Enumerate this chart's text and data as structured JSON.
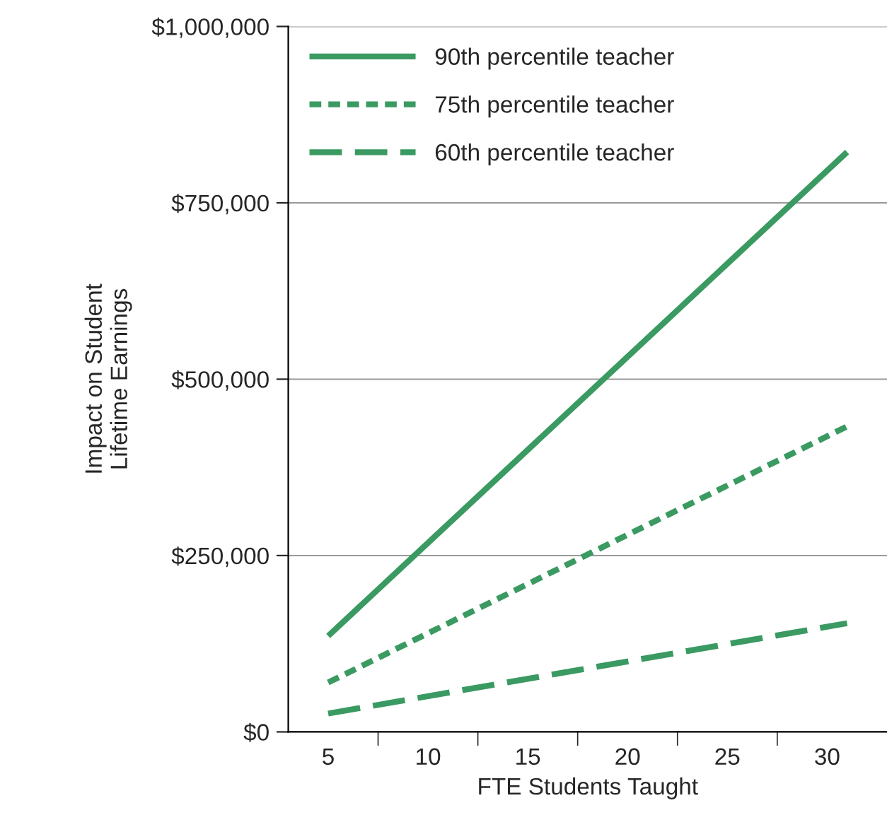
{
  "chart_data": {
    "type": "line",
    "xlabel": "FTE Students Taught",
    "ylabel": "Impact on Student\nLifetime Earnings",
    "x": [
      5,
      31
    ],
    "series": [
      {
        "name": "90th percentile teacher",
        "color": "#3a9a62",
        "values": [
          136000,
          822000
        ],
        "line_style": "solid"
      },
      {
        "name": "75th percentile teacher",
        "color": "#3a9a62",
        "values": [
          70000,
          433000
        ],
        "line_style": "dotted"
      },
      {
        "name": "60th percentile teacher",
        "color": "#3a9a62",
        "values": [
          26000,
          154000
        ],
        "line_style": "dashed"
      }
    ],
    "xlim": [
      3,
      33
    ],
    "xticks": [
      5,
      10,
      15,
      20,
      25,
      30,
      {
        "value": 7.5,
        "label": null
      },
      {
        "value": 12.5,
        "label": null
      },
      {
        "value": 17.5,
        "label": null
      },
      {
        "value": 22.5,
        "label": null
      },
      {
        "value": 27.5,
        "label": null
      }
    ],
    "ylim": [
      0,
      1000000
    ],
    "yticks": [
      {
        "value": 0,
        "label": "$0"
      },
      {
        "value": 250000,
        "label": "$250,000"
      },
      {
        "value": 500000,
        "label": "$500,000"
      },
      {
        "value": 750000,
        "label": "$750,000"
      },
      {
        "value": 1000000,
        "label": "$1,000,000"
      }
    ],
    "grid": "y",
    "legend": "top left",
    "marker": "none"
  }
}
